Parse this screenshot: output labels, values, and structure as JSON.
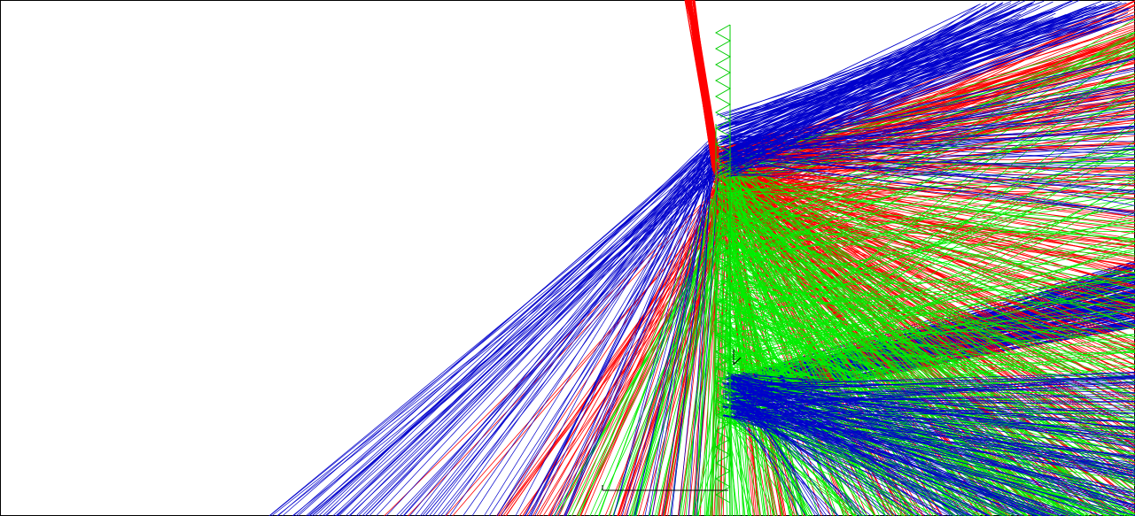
{
  "viewer": {
    "background_color": "#ffffff",
    "frame_color": "#000000",
    "axes_color": "#000000",
    "ray_colors": {
      "red": "#ff0000",
      "green": "#00ee00",
      "blue": "#0000cc"
    },
    "detector_outline_color": "#00cc00"
  }
}
